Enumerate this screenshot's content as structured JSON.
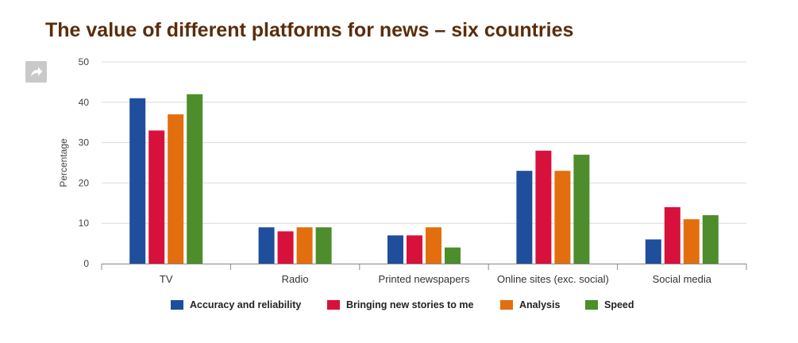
{
  "title": "The value of different platforms for news – six countries",
  "share": {
    "icon": "share-arrow-icon"
  },
  "chart_data": {
    "type": "bar",
    "title": "The value of different platforms for news – six countries",
    "xlabel": "",
    "ylabel": "Percentage",
    "ylim": [
      0,
      50
    ],
    "yticks": [
      0,
      10,
      20,
      30,
      40,
      50
    ],
    "grid": true,
    "legend_position": "bottom",
    "categories": [
      "TV",
      "Radio",
      "Printed newspapers",
      "Online sites (exc. social)",
      "Social media"
    ],
    "series": [
      {
        "name": "Accuracy and reliability",
        "color": "#1f4e9c",
        "values": [
          41,
          9,
          7,
          23,
          6
        ]
      },
      {
        "name": "Bringing new stories to me",
        "color": "#d8103c",
        "values": [
          33,
          8,
          7,
          28,
          14
        ]
      },
      {
        "name": "Analysis",
        "color": "#e36e0e",
        "values": [
          37,
          9,
          9,
          23,
          11
        ]
      },
      {
        "name": "Speed",
        "color": "#4d8d2b",
        "values": [
          42,
          9,
          4,
          27,
          12
        ]
      }
    ]
  }
}
